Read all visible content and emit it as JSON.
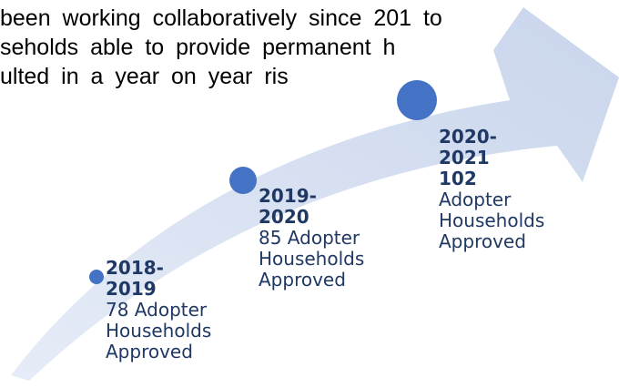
{
  "paragraph": {
    "lines": [
      "been working collaboratively since 201     to",
      "seholds able to provide permanent h",
      "ulted in a year on year ris"
    ]
  },
  "colors": {
    "arrow_fill": "#cfd9ee",
    "dot": "#4472c4",
    "label_text": "#1f3864"
  },
  "milestones": [
    {
      "period": "2018-2019",
      "count": "78",
      "line1_rest": " Adopter",
      "line2": "Households",
      "line3": "Approved"
    },
    {
      "period": "2019-2020",
      "count": "85",
      "line1_rest": " Adopter",
      "line2": "Households",
      "line3": "Approved"
    },
    {
      "period": "2020-2021",
      "count": "102",
      "line1_rest": " Adopter",
      "line2": "Households",
      "line3": "Approved"
    }
  ]
}
